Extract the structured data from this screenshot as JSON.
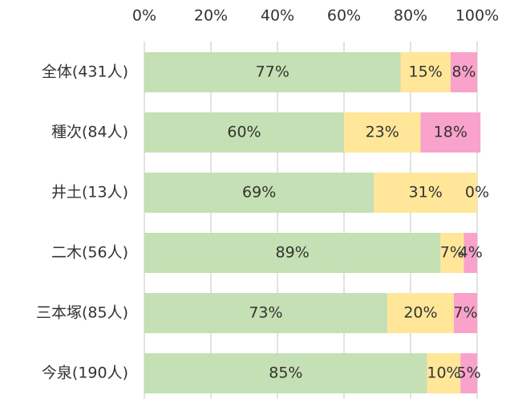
{
  "chart_data": {
    "type": "stacked-barh",
    "categories": [
      "全体(431人)",
      "種次(84人)",
      "井土(13人)",
      "二木(56人)",
      "三本塚(85人)",
      "今泉(190人)"
    ],
    "series": [
      {
        "color": "#c5e0b4",
        "values": [
          77,
          60,
          69,
          89,
          73,
          85
        ],
        "value_labels": [
          "77%",
          "60%",
          "69%",
          "89%",
          "73%",
          "85%"
        ]
      },
      {
        "color": "#ffe699",
        "values": [
          15,
          23,
          31,
          7,
          20,
          10
        ],
        "value_labels": [
          "15%",
          "23%",
          "31%",
          "7%",
          "20%",
          "10%"
        ]
      },
      {
        "color": "#f9a2cb",
        "values": [
          8,
          18,
          0,
          4,
          7,
          5
        ],
        "value_labels": [
          "8%",
          "18%",
          "0%",
          "4%",
          "7%",
          "5%"
        ]
      }
    ],
    "xlim": [
      0,
      100
    ],
    "xticks": [
      {
        "value": 0,
        "label": "0%"
      },
      {
        "value": 20,
        "label": "20%"
      },
      {
        "value": 40,
        "label": "40%"
      },
      {
        "value": 60,
        "label": "60%"
      },
      {
        "value": 80,
        "label": "80%"
      },
      {
        "value": 100,
        "label": "100%"
      }
    ],
    "grid": true
  }
}
